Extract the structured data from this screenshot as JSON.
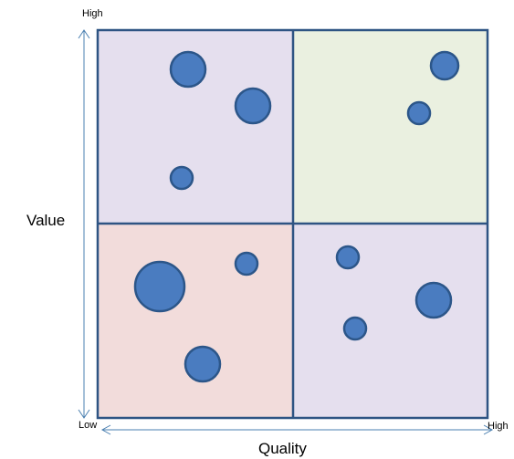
{
  "axes": {
    "x_title": "Quality",
    "y_title": "Value",
    "x_low": "Low",
    "x_high": "High",
    "y_high": "High"
  },
  "colors": {
    "grid_line": "#2e5483",
    "arrow": "#4a7fb0",
    "bubble_fill": "#4a7cc0",
    "bubble_stroke": "#2c5689",
    "quadrant_top_left": "#e5dfee",
    "quadrant_top_right": "#eaf0e0",
    "quadrant_bottom_left": "#f2dcdb",
    "quadrant_bottom_right": "#e5dfee"
  }
}
